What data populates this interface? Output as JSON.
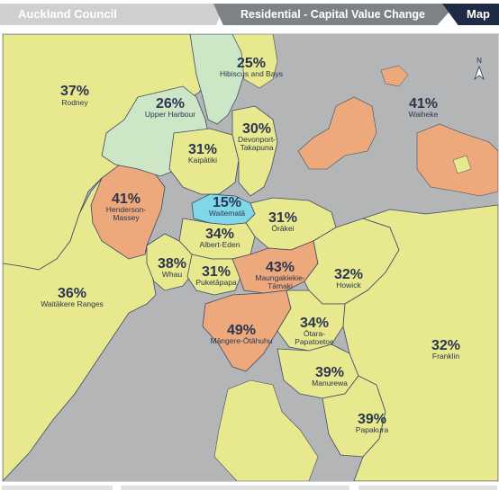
{
  "header": {
    "council_label": "Auckland Council",
    "title": "Residential - Capital Value Change",
    "map_tab_label": "Map"
  },
  "compass": {
    "label": "N"
  },
  "colors": {
    "water": "#b3b5b7",
    "low_change": "#7fd7e8",
    "mid_change": "#e8e88e",
    "high_change": "#eda97c",
    "light_green": "#cde7c6",
    "boundary": "#3d4a66"
  },
  "areas": [
    {
      "name": "Rodney",
      "pct": "37%"
    },
    {
      "name": "Hibiscus and Bays",
      "pct": "25%"
    },
    {
      "name": "Upper Harbour",
      "pct": "26%"
    },
    {
      "name": "Devonport-Takapuna",
      "name_line1": "Devonport-",
      "name_line2": "Takapuna",
      "pct": "30%"
    },
    {
      "name": "Kaipātiki",
      "pct": "31%"
    },
    {
      "name": "Waiheke",
      "pct": "41%"
    },
    {
      "name": "Henderson-Massey",
      "name_line1": "Henderson-",
      "name_line2": "Massey",
      "pct": "41%"
    },
    {
      "name": "Waitematā",
      "pct": "15%"
    },
    {
      "name": "Ōrākei",
      "pct": "31%"
    },
    {
      "name": "Albert-Eden",
      "pct": "34%"
    },
    {
      "name": "Whau",
      "pct": "38%"
    },
    {
      "name": "Puketāpapa",
      "pct": "31%"
    },
    {
      "name": "Maungakiekie-Tāmaki",
      "name_line1": "Maungakiekie-",
      "name_line2": "Tāmaki",
      "pct": "43%"
    },
    {
      "name": "Howick",
      "pct": "32%"
    },
    {
      "name": "Waitākere Ranges",
      "pct": "36%"
    },
    {
      "name": "Māngere-Ōtāhuhu",
      "pct": "49%"
    },
    {
      "name": "Ōtara-Papatoetoe",
      "name_line1": "Ōtara-",
      "name_line2": "Papatoetoe",
      "pct": "34%"
    },
    {
      "name": "Franklin",
      "pct": "32%"
    },
    {
      "name": "Manurewa",
      "pct": "39%"
    },
    {
      "name": "Papakura",
      "pct": "39%"
    }
  ]
}
